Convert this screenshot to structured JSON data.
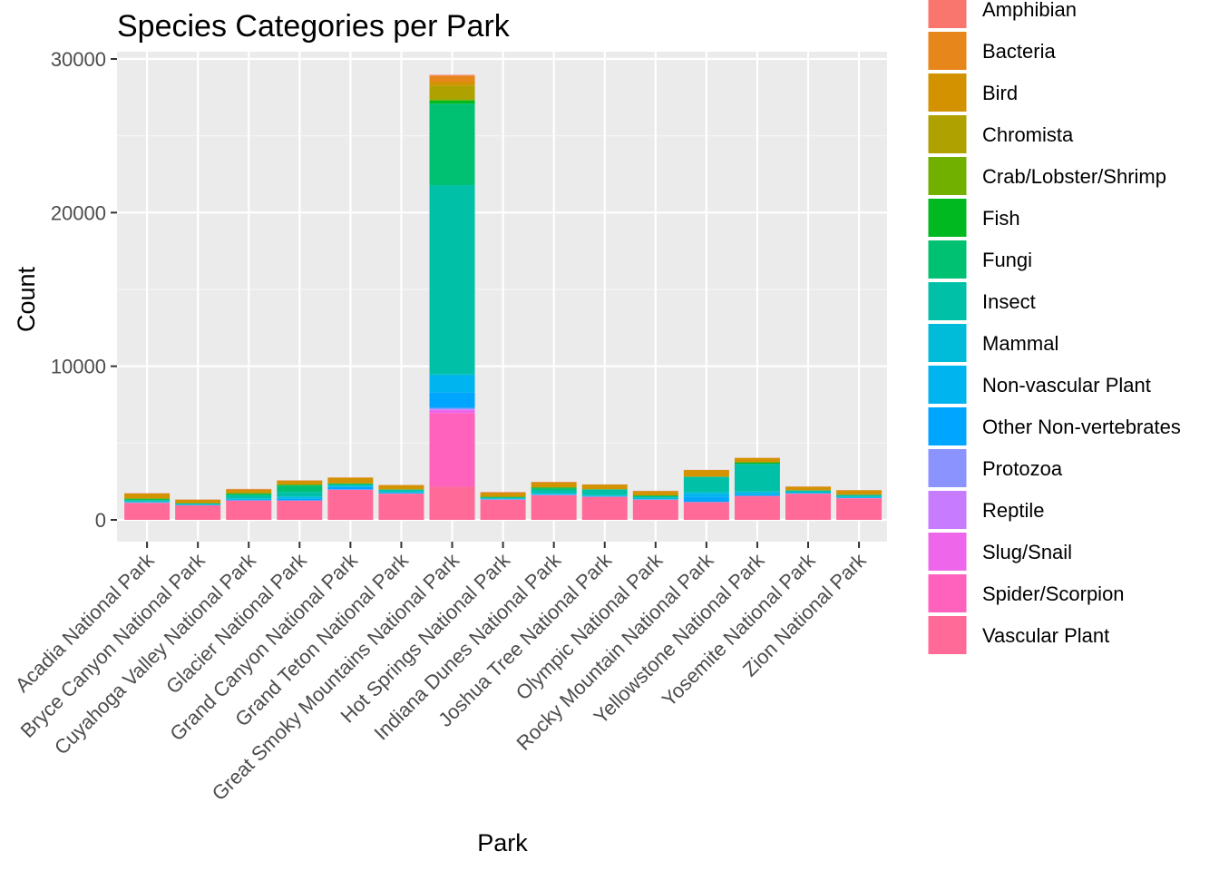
{
  "chart_data": {
    "type": "bar",
    "stacked": true,
    "title": "Species Categories per Park",
    "xlabel": "Park",
    "ylabel": "Count",
    "ylim": [
      0,
      30000
    ],
    "yticks": [
      0,
      10000,
      20000,
      30000
    ],
    "grid": true,
    "legend_position": "right",
    "categories": [
      "Acadia National Park",
      "Bryce Canyon National Park",
      "Cuyahoga Valley National Park",
      "Glacier National Park",
      "Grand Canyon National Park",
      "Grand Teton National Park",
      "Great Smoky Mountains National Park",
      "Hot Springs National Park",
      "Indiana Dunes National Park",
      "Joshua Tree National Park",
      "Olympic National Park",
      "Rocky Mountain National Park",
      "Yellowstone National Park",
      "Yosemite National Park",
      "Zion National Park"
    ],
    "series": [
      {
        "name": "Amphibian",
        "color": "#F8766D",
        "values": [
          20,
          10,
          25,
          15,
          10,
          10,
          45,
          30,
          20,
          10,
          20,
          10,
          10,
          15,
          10
        ]
      },
      {
        "name": "Bacteria",
        "color": "#E7861B",
        "values": [
          0,
          0,
          0,
          0,
          0,
          0,
          400,
          0,
          0,
          0,
          0,
          0,
          0,
          0,
          0
        ]
      },
      {
        "name": "Bird",
        "color": "#D39200",
        "values": [
          330,
          230,
          250,
          270,
          370,
          280,
          250,
          280,
          330,
          310,
          280,
          430,
          290,
          230,
          290
        ]
      },
      {
        "name": "Chromista",
        "color": "#AFA100",
        "values": [
          0,
          0,
          0,
          0,
          0,
          0,
          900,
          0,
          0,
          0,
          0,
          0,
          0,
          0,
          0
        ]
      },
      {
        "name": "Crab/Lobster/Shrimp",
        "color": "#72B000",
        "values": [
          10,
          0,
          10,
          5,
          10,
          0,
          80,
          5,
          10,
          0,
          5,
          0,
          0,
          0,
          0
        ]
      },
      {
        "name": "Fish",
        "color": "#00B81F",
        "values": [
          60,
          20,
          70,
          60,
          50,
          20,
          200,
          40,
          60,
          10,
          50,
          20,
          100,
          15,
          20
        ]
      },
      {
        "name": "Fungi",
        "color": "#00C072",
        "values": [
          40,
          0,
          60,
          400,
          0,
          0,
          5300,
          0,
          100,
          0,
          0,
          0,
          0,
          0,
          0
        ]
      },
      {
        "name": "Insect",
        "color": "#00C1A7",
        "values": [
          60,
          40,
          200,
          300,
          80,
          100,
          12300,
          60,
          200,
          350,
          100,
          1000,
          1800,
          80,
          100
        ]
      },
      {
        "name": "Mammal",
        "color": "#00BCD8",
        "values": [
          60,
          70,
          70,
          80,
          80,
          80,
          100,
          50,
          60,
          80,
          80,
          90,
          90,
          90,
          80
        ]
      },
      {
        "name": "Non-vascular Plant",
        "color": "#00B4EF",
        "values": [
          20,
          0,
          30,
          80,
          30,
          50,
          1100,
          0,
          50,
          20,
          20,
          220,
          130,
          0,
          0
        ]
      },
      {
        "name": "Other Non-vertebrates",
        "color": "#00A5FF",
        "values": [
          20,
          0,
          30,
          100,
          150,
          20,
          1000,
          20,
          20,
          20,
          20,
          320,
          60,
          20,
          20
        ]
      },
      {
        "name": "Protozoa",
        "color": "#8B93FF",
        "values": [
          0,
          0,
          0,
          0,
          0,
          0,
          100,
          0,
          0,
          0,
          0,
          0,
          0,
          0,
          0
        ]
      },
      {
        "name": "Reptile",
        "color": "#C77CFF",
        "values": [
          10,
          10,
          10,
          5,
          20,
          5,
          40,
          20,
          10,
          10,
          10,
          5,
          5,
          10,
          10
        ]
      },
      {
        "name": "Slug/Snail",
        "color": "#EE67EB",
        "values": [
          10,
          0,
          10,
          10,
          10,
          10,
          200,
          10,
          10,
          0,
          10,
          10,
          10,
          10,
          10
        ]
      },
      {
        "name": "Spider/Scorpion",
        "color": "#FF62BC",
        "values": [
          0,
          0,
          0,
          0,
          0,
          0,
          4800,
          0,
          0,
          0,
          0,
          0,
          0,
          0,
          0
        ]
      },
      {
        "name": "Vascular Plant",
        "color": "#FF6A98",
        "values": [
          1100,
          950,
          1250,
          1250,
          1950,
          1700,
          2150,
          1300,
          1600,
          1500,
          1300,
          1150,
          1550,
          1700,
          1400
        ]
      }
    ]
  }
}
